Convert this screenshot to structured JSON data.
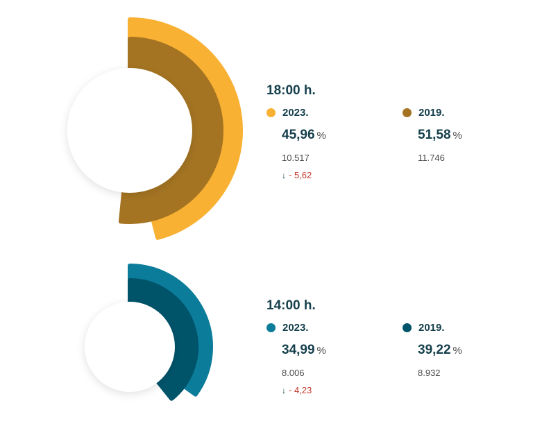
{
  "chart_data": [
    {
      "type": "radial-bar",
      "title": "18:00 h.",
      "percent_unit": "%",
      "series": [
        {
          "name": "2023.",
          "value": 45.96,
          "label": "45,96",
          "count": "10.517",
          "color": "#f8b133",
          "diff_arrow": "↓",
          "diff": "- 5,62"
        },
        {
          "name": "2019.",
          "value": 51.58,
          "label": "51,58",
          "count": "11.746",
          "color": "#a47422"
        }
      ]
    },
    {
      "type": "radial-bar",
      "title": "14:00 h.",
      "percent_unit": "%",
      "series": [
        {
          "name": "2023.",
          "value": 34.99,
          "label": "34,99",
          "count": "8.006",
          "color": "#0b7c9a",
          "diff_arrow": "↓",
          "diff": "- 4,23"
        },
        {
          "name": "2019.",
          "value": 39.22,
          "label": "39,22",
          "count": "8.932",
          "color": "#00546a"
        }
      ]
    }
  ]
}
